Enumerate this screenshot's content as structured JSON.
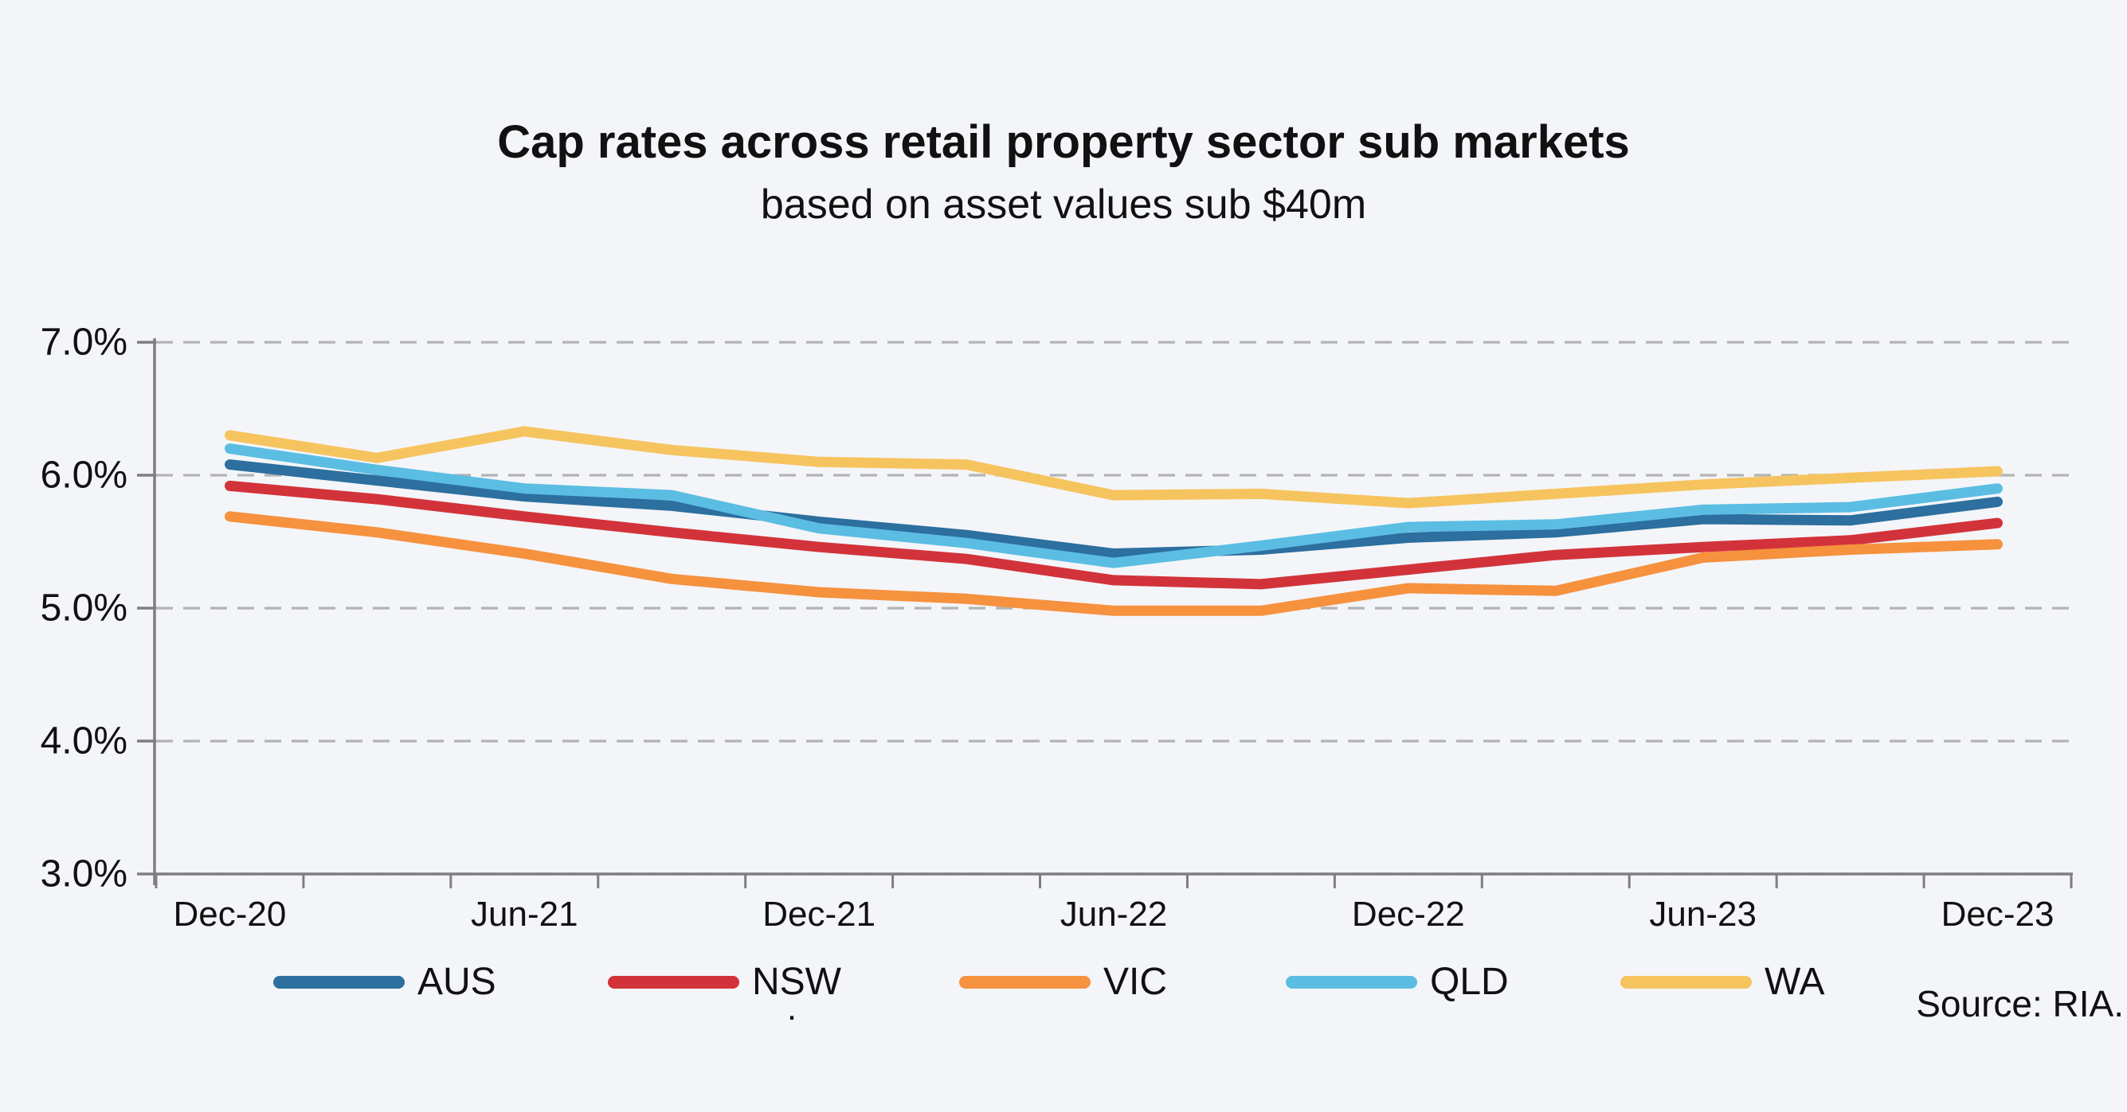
{
  "chart_data": {
    "type": "line",
    "title": "Cap rates across retail property sector sub markets",
    "subtitle": "based on asset values sub $40m",
    "source": "Source: RIA.",
    "stray_text": ".",
    "categories": [
      "Dec-20",
      "Mar-21",
      "Jun-21",
      "Sep-21",
      "Dec-21",
      "Mar-22",
      "Jun-22",
      "Sep-22",
      "Dec-22",
      "Mar-23",
      "Jun-23",
      "Sep-23",
      "Dec-23"
    ],
    "x_axis_shown_labels": [
      "Dec-20",
      "Jun-21",
      "Dec-21",
      "Jun-22",
      "Dec-22",
      "Jun-23",
      "Dec-23"
    ],
    "y_ticks": {
      "labels": [
        "7.0%",
        "6.0%",
        "5.0%",
        "4.0%",
        "3.0%"
      ],
      "values": [
        7.0,
        6.0,
        5.0,
        4.0,
        3.0
      ]
    },
    "ylim": [
      3.0,
      7.0
    ],
    "grid": "horizontal-dashed",
    "legend_position": "bottom",
    "series": [
      {
        "name": "AUS",
        "color": "#2D6F9E",
        "values": [
          6.08,
          5.96,
          5.84,
          5.77,
          5.65,
          5.55,
          5.41,
          5.44,
          5.53,
          5.57,
          5.67,
          5.66,
          5.8
        ]
      },
      {
        "name": "NSW",
        "color": "#D2333A",
        "values": [
          5.92,
          5.82,
          5.69,
          5.57,
          5.46,
          5.37,
          5.21,
          5.18,
          5.29,
          5.4,
          5.46,
          5.51,
          5.64
        ]
      },
      {
        "name": "VIC",
        "color": "#F6913E",
        "values": [
          5.69,
          5.57,
          5.41,
          5.22,
          5.12,
          5.07,
          4.98,
          4.98,
          5.15,
          5.13,
          5.38,
          5.44,
          5.48
        ]
      },
      {
        "name": "QLD",
        "color": "#5BBDE2",
        "values": [
          6.2,
          6.04,
          5.9,
          5.85,
          5.6,
          5.49,
          5.34,
          5.47,
          5.61,
          5.63,
          5.74,
          5.76,
          5.9
        ]
      },
      {
        "name": "WA",
        "color": "#F6C45F",
        "values": [
          6.3,
          6.13,
          6.33,
          6.19,
          6.1,
          6.08,
          5.85,
          5.86,
          5.79,
          5.86,
          5.93,
          5.98,
          6.03
        ]
      }
    ],
    "style": {
      "background": "#F3F5F9",
      "axis_color": "#7F7F7F",
      "gridline_color": "#B3B3B3",
      "text_color": "#111111"
    }
  }
}
